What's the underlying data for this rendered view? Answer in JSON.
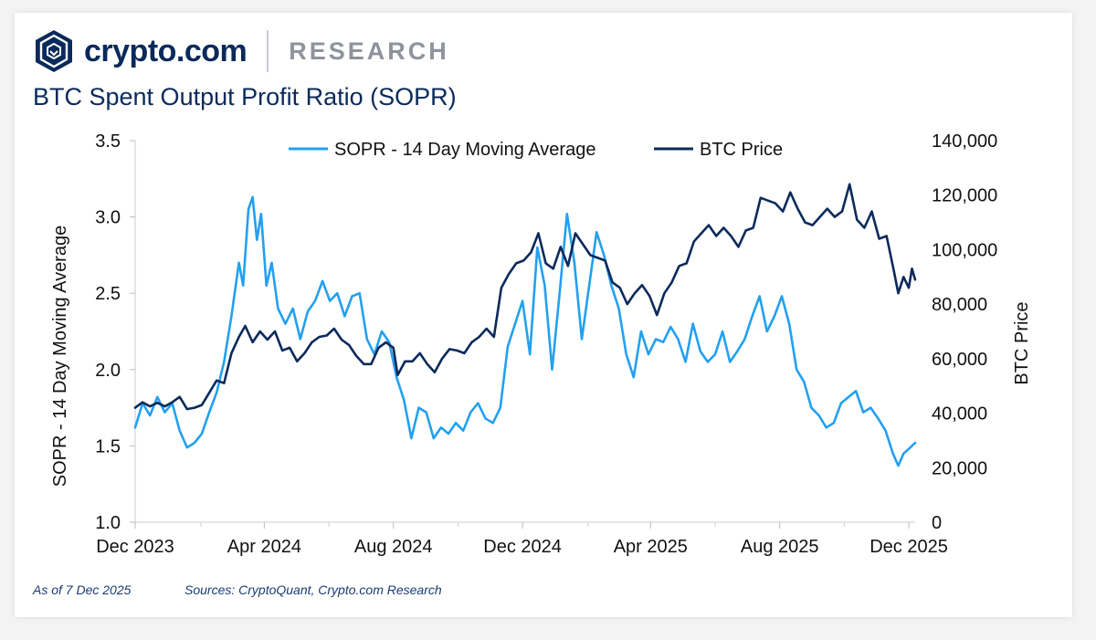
{
  "brand": {
    "name": "crypto.com",
    "section": "RESEARCH",
    "logo_icon": "crypto-com-lion-shield-icon",
    "color": "#0b2a5b"
  },
  "footer": {
    "as_of": "As of 7 Dec 2025",
    "sources": "Sources: CryptoQuant, Crypto.com Research"
  },
  "chart_data": {
    "type": "line",
    "title": "BTC Spent Output Profit Ratio (SOPR)",
    "ylabel_left": "SOPR - 14 Day Moving Average",
    "ylabel_right": "BTC Price",
    "xlabel": "",
    "x_ticks": [
      "Dec 2023",
      "Apr 2024",
      "Aug 2024",
      "Dec 2024",
      "Apr 2025",
      "Aug 2025",
      "Dec 2025"
    ],
    "y_left_ticks": [
      "1.0",
      "1.5",
      "2.0",
      "2.5",
      "3.0",
      "3.5"
    ],
    "y_right_ticks": [
      "0",
      "20,000",
      "40,000",
      "60,000",
      "80,000",
      "100,000",
      "120,000",
      "140,000"
    ],
    "ylim_left": [
      1.0,
      3.5
    ],
    "ylim_right": [
      0,
      140000
    ],
    "xlim": [
      "2023-12-01",
      "2025-12-07"
    ],
    "legend_position": "top-center",
    "grid": false,
    "series": [
      {
        "name": "SOPR - 14 Day Moving Average",
        "axis": "left",
        "color": "#23a0f0",
        "points": [
          [
            "2023-12-01",
            1.62
          ],
          [
            "2023-12-08",
            1.78
          ],
          [
            "2023-12-15",
            1.7
          ],
          [
            "2023-12-22",
            1.82
          ],
          [
            "2023-12-29",
            1.72
          ],
          [
            "2024-01-05",
            1.78
          ],
          [
            "2024-01-12",
            1.6
          ],
          [
            "2024-01-19",
            1.49
          ],
          [
            "2024-01-26",
            1.52
          ],
          [
            "2024-02-02",
            1.58
          ],
          [
            "2024-02-09",
            1.72
          ],
          [
            "2024-02-16",
            1.85
          ],
          [
            "2024-02-23",
            2.05
          ],
          [
            "2024-03-01",
            2.35
          ],
          [
            "2024-03-08",
            2.7
          ],
          [
            "2024-03-12",
            2.55
          ],
          [
            "2024-03-17",
            3.05
          ],
          [
            "2024-03-21",
            3.13
          ],
          [
            "2024-03-25",
            2.85
          ],
          [
            "2024-03-29",
            3.02
          ],
          [
            "2024-04-03",
            2.55
          ],
          [
            "2024-04-08",
            2.7
          ],
          [
            "2024-04-14",
            2.4
          ],
          [
            "2024-04-21",
            2.3
          ],
          [
            "2024-04-28",
            2.4
          ],
          [
            "2024-05-05",
            2.2
          ],
          [
            "2024-05-12",
            2.38
          ],
          [
            "2024-05-19",
            2.45
          ],
          [
            "2024-05-26",
            2.58
          ],
          [
            "2024-06-02",
            2.45
          ],
          [
            "2024-06-09",
            2.5
          ],
          [
            "2024-06-16",
            2.35
          ],
          [
            "2024-06-23",
            2.48
          ],
          [
            "2024-06-30",
            2.5
          ],
          [
            "2024-07-07",
            2.2
          ],
          [
            "2024-07-14",
            2.1
          ],
          [
            "2024-07-21",
            2.25
          ],
          [
            "2024-07-28",
            2.18
          ],
          [
            "2024-08-04",
            1.95
          ],
          [
            "2024-08-11",
            1.8
          ],
          [
            "2024-08-18",
            1.55
          ],
          [
            "2024-08-25",
            1.75
          ],
          [
            "2024-09-01",
            1.72
          ],
          [
            "2024-09-08",
            1.55
          ],
          [
            "2024-09-15",
            1.62
          ],
          [
            "2024-09-22",
            1.58
          ],
          [
            "2024-09-29",
            1.65
          ],
          [
            "2024-10-06",
            1.6
          ],
          [
            "2024-10-13",
            1.72
          ],
          [
            "2024-10-20",
            1.78
          ],
          [
            "2024-10-27",
            1.68
          ],
          [
            "2024-11-03",
            1.65
          ],
          [
            "2024-11-10",
            1.75
          ],
          [
            "2024-11-17",
            2.15
          ],
          [
            "2024-11-24",
            2.3
          ],
          [
            "2024-12-01",
            2.45
          ],
          [
            "2024-12-08",
            2.1
          ],
          [
            "2024-12-15",
            2.8
          ],
          [
            "2024-12-22",
            2.55
          ],
          [
            "2024-12-29",
            2.0
          ],
          [
            "2025-01-05",
            2.5
          ],
          [
            "2025-01-12",
            3.02
          ],
          [
            "2025-01-19",
            2.7
          ],
          [
            "2025-01-26",
            2.2
          ],
          [
            "2025-02-02",
            2.55
          ],
          [
            "2025-02-09",
            2.9
          ],
          [
            "2025-02-16",
            2.75
          ],
          [
            "2025-02-23",
            2.55
          ],
          [
            "2025-03-02",
            2.4
          ],
          [
            "2025-03-09",
            2.1
          ],
          [
            "2025-03-16",
            1.95
          ],
          [
            "2025-03-23",
            2.25
          ],
          [
            "2025-03-30",
            2.1
          ],
          [
            "2025-04-06",
            2.2
          ],
          [
            "2025-04-13",
            2.18
          ],
          [
            "2025-04-20",
            2.28
          ],
          [
            "2025-04-27",
            2.2
          ],
          [
            "2025-05-04",
            2.05
          ],
          [
            "2025-05-11",
            2.3
          ],
          [
            "2025-05-18",
            2.12
          ],
          [
            "2025-05-25",
            2.05
          ],
          [
            "2025-06-01",
            2.1
          ],
          [
            "2025-06-08",
            2.25
          ],
          [
            "2025-06-15",
            2.05
          ],
          [
            "2025-06-22",
            2.12
          ],
          [
            "2025-06-29",
            2.2
          ],
          [
            "2025-07-06",
            2.35
          ],
          [
            "2025-07-13",
            2.48
          ],
          [
            "2025-07-20",
            2.25
          ],
          [
            "2025-07-27",
            2.35
          ],
          [
            "2025-08-03",
            2.48
          ],
          [
            "2025-08-10",
            2.3
          ],
          [
            "2025-08-17",
            2.0
          ],
          [
            "2025-08-24",
            1.92
          ],
          [
            "2025-08-31",
            1.75
          ],
          [
            "2025-09-07",
            1.7
          ],
          [
            "2025-09-14",
            1.62
          ],
          [
            "2025-09-21",
            1.65
          ],
          [
            "2025-09-28",
            1.78
          ],
          [
            "2025-10-05",
            1.82
          ],
          [
            "2025-10-12",
            1.86
          ],
          [
            "2025-10-19",
            1.72
          ],
          [
            "2025-10-26",
            1.75
          ],
          [
            "2025-11-02",
            1.68
          ],
          [
            "2025-11-09",
            1.6
          ],
          [
            "2025-11-16",
            1.45
          ],
          [
            "2025-11-21",
            1.37
          ],
          [
            "2025-11-26",
            1.45
          ],
          [
            "2025-12-01",
            1.48
          ],
          [
            "2025-12-07",
            1.52
          ]
        ]
      },
      {
        "name": "BTC Price",
        "axis": "right",
        "color": "#0b2a5b",
        "points": [
          [
            "2023-12-01",
            42000
          ],
          [
            "2023-12-08",
            44000
          ],
          [
            "2023-12-15",
            42500
          ],
          [
            "2023-12-22",
            43800
          ],
          [
            "2023-12-29",
            42500
          ],
          [
            "2024-01-05",
            44000
          ],
          [
            "2024-01-12",
            46000
          ],
          [
            "2024-01-19",
            41500
          ],
          [
            "2024-01-26",
            42000
          ],
          [
            "2024-02-02",
            43000
          ],
          [
            "2024-02-09",
            47500
          ],
          [
            "2024-02-16",
            52000
          ],
          [
            "2024-02-23",
            51000
          ],
          [
            "2024-03-01",
            62000
          ],
          [
            "2024-03-08",
            68000
          ],
          [
            "2024-03-14",
            72000
          ],
          [
            "2024-03-21",
            66000
          ],
          [
            "2024-03-28",
            70000
          ],
          [
            "2024-04-04",
            67000
          ],
          [
            "2024-04-11",
            70000
          ],
          [
            "2024-04-18",
            63000
          ],
          [
            "2024-04-25",
            64000
          ],
          [
            "2024-05-02",
            59000
          ],
          [
            "2024-05-09",
            62000
          ],
          [
            "2024-05-16",
            66000
          ],
          [
            "2024-05-23",
            68000
          ],
          [
            "2024-05-30",
            68500
          ],
          [
            "2024-06-06",
            71000
          ],
          [
            "2024-06-13",
            67000
          ],
          [
            "2024-06-20",
            65000
          ],
          [
            "2024-06-27",
            61000
          ],
          [
            "2024-07-04",
            58000
          ],
          [
            "2024-07-11",
            58000
          ],
          [
            "2024-07-18",
            64000
          ],
          [
            "2024-07-25",
            66000
          ],
          [
            "2024-08-01",
            64000
          ],
          [
            "2024-08-05",
            54000
          ],
          [
            "2024-08-12",
            59000
          ],
          [
            "2024-08-19",
            59000
          ],
          [
            "2024-08-26",
            62000
          ],
          [
            "2024-09-02",
            58000
          ],
          [
            "2024-09-09",
            55000
          ],
          [
            "2024-09-16",
            60000
          ],
          [
            "2024-09-23",
            63500
          ],
          [
            "2024-09-30",
            63000
          ],
          [
            "2024-10-07",
            62000
          ],
          [
            "2024-10-14",
            66000
          ],
          [
            "2024-10-21",
            68000
          ],
          [
            "2024-10-28",
            71000
          ],
          [
            "2024-11-04",
            68000
          ],
          [
            "2024-11-11",
            86000
          ],
          [
            "2024-11-18",
            91000
          ],
          [
            "2024-11-25",
            95000
          ],
          [
            "2024-12-02",
            96000
          ],
          [
            "2024-12-09",
            99000
          ],
          [
            "2024-12-16",
            106000
          ],
          [
            "2024-12-23",
            95000
          ],
          [
            "2024-12-30",
            93000
          ],
          [
            "2025-01-06",
            101000
          ],
          [
            "2025-01-13",
            94000
          ],
          [
            "2025-01-20",
            106000
          ],
          [
            "2025-01-27",
            102000
          ],
          [
            "2025-02-03",
            98000
          ],
          [
            "2025-02-10",
            97000
          ],
          [
            "2025-02-17",
            96000
          ],
          [
            "2025-02-24",
            88000
          ],
          [
            "2025-03-03",
            86000
          ],
          [
            "2025-03-10",
            80000
          ],
          [
            "2025-03-17",
            84000
          ],
          [
            "2025-03-24",
            87000
          ],
          [
            "2025-03-31",
            83000
          ],
          [
            "2025-04-07",
            76000
          ],
          [
            "2025-04-14",
            84000
          ],
          [
            "2025-04-21",
            88000
          ],
          [
            "2025-04-28",
            94000
          ],
          [
            "2025-05-05",
            95000
          ],
          [
            "2025-05-12",
            103000
          ],
          [
            "2025-05-19",
            106000
          ],
          [
            "2025-05-26",
            109000
          ],
          [
            "2025-06-02",
            105000
          ],
          [
            "2025-06-09",
            108000
          ],
          [
            "2025-06-16",
            105000
          ],
          [
            "2025-06-23",
            101000
          ],
          [
            "2025-06-30",
            107000
          ],
          [
            "2025-07-07",
            108000
          ],
          [
            "2025-07-14",
            119000
          ],
          [
            "2025-07-21",
            118000
          ],
          [
            "2025-07-28",
            117000
          ],
          [
            "2025-08-04",
            114000
          ],
          [
            "2025-08-11",
            121000
          ],
          [
            "2025-08-18",
            115000
          ],
          [
            "2025-08-25",
            110000
          ],
          [
            "2025-09-01",
            109000
          ],
          [
            "2025-09-08",
            112000
          ],
          [
            "2025-09-15",
            115000
          ],
          [
            "2025-09-22",
            112000
          ],
          [
            "2025-09-29",
            114000
          ],
          [
            "2025-10-06",
            124000
          ],
          [
            "2025-10-13",
            111000
          ],
          [
            "2025-10-20",
            108000
          ],
          [
            "2025-10-27",
            114000
          ],
          [
            "2025-11-03",
            104000
          ],
          [
            "2025-11-10",
            105000
          ],
          [
            "2025-11-17",
            92000
          ],
          [
            "2025-11-21",
            84000
          ],
          [
            "2025-11-26",
            90000
          ],
          [
            "2025-12-01",
            86000
          ],
          [
            "2025-12-04",
            93000
          ],
          [
            "2025-12-07",
            89000
          ]
        ]
      }
    ]
  }
}
